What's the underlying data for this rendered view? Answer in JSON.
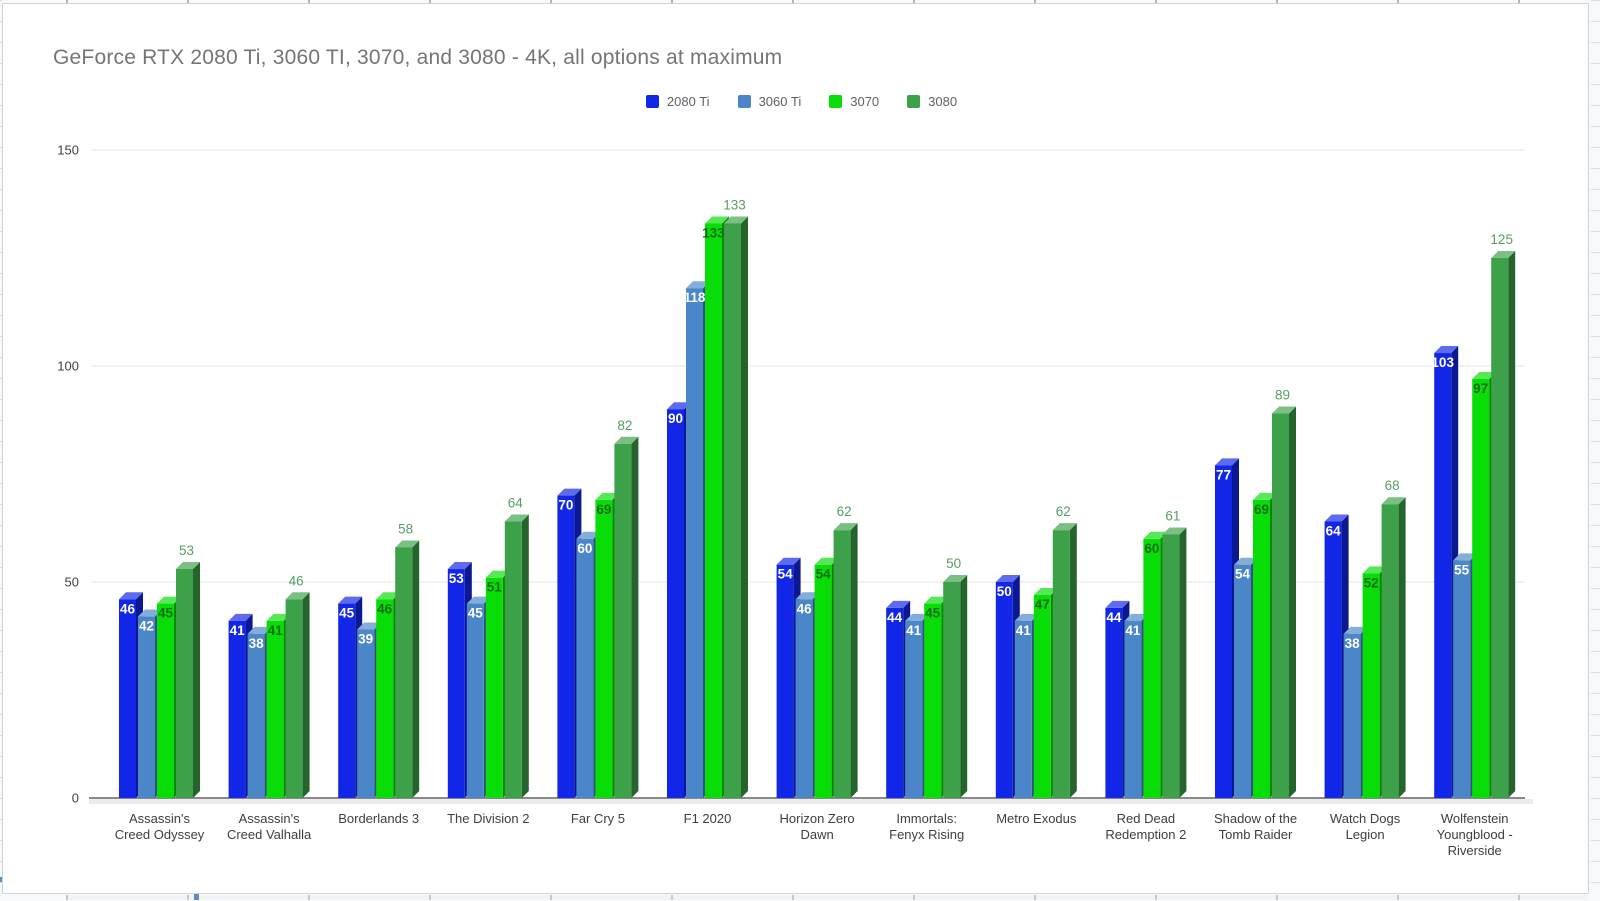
{
  "chart_data": {
    "type": "bar",
    "style": "3d-grouped-column",
    "title": "GeForce RTX 2080 Ti, 3060 TI, 3070, and 3080 - 4K, all options at maximum",
    "title_color": "#757575",
    "xlabel": "",
    "ylabel": "",
    "ylim": [
      0,
      150
    ],
    "yticks": [
      0,
      50,
      100,
      150
    ],
    "grid": true,
    "legend_position": "top-center",
    "value_labels": true,
    "categories": [
      "Assassin's Creed Odyssey",
      "Assassin's Creed Valhalla",
      "Borderlands 3",
      "The Division 2",
      "Far Cry 5",
      "F1 2020",
      "Horizon Zero Dawn",
      "Immortals: Fenyx Rising",
      "Metro Exodus",
      "Red Dead Redemption 2",
      "Shadow of the Tomb Raider",
      "Watch Dogs Legion",
      "Wolfenstein Youngblood - Riverside"
    ],
    "series": [
      {
        "name": "2080 Ti",
        "color": "#1226e8",
        "label_color": "#ffffff",
        "label_position": "inside-top",
        "values": [
          46,
          41,
          45,
          53,
          70,
          90,
          54,
          44,
          50,
          44,
          77,
          64,
          103
        ]
      },
      {
        "name": "3060 Ti",
        "color": "#4a86c8",
        "label_color": "#ffffff",
        "label_position": "inside-top",
        "values": [
          42,
          38,
          39,
          45,
          60,
          118,
          46,
          41,
          41,
          41,
          54,
          38,
          55
        ]
      },
      {
        "name": "3070",
        "color": "#08dd08",
        "label_color": "#156a15",
        "label_position": "inside-top",
        "values": [
          45,
          41,
          46,
          51,
          69,
          133,
          54,
          45,
          47,
          60,
          69,
          52,
          97
        ]
      },
      {
        "name": "3080",
        "color": "#3da14a",
        "label_color": "#569f63",
        "label_position": "above",
        "values": [
          53,
          46,
          58,
          64,
          82,
          133,
          62,
          50,
          62,
          61,
          89,
          68,
          125
        ]
      }
    ],
    "axis_text_color": "#424242",
    "category_text_color": "#3c4043",
    "gridline_color": "#e6e6e6",
    "baseline_color": "#8a8a8a"
  }
}
